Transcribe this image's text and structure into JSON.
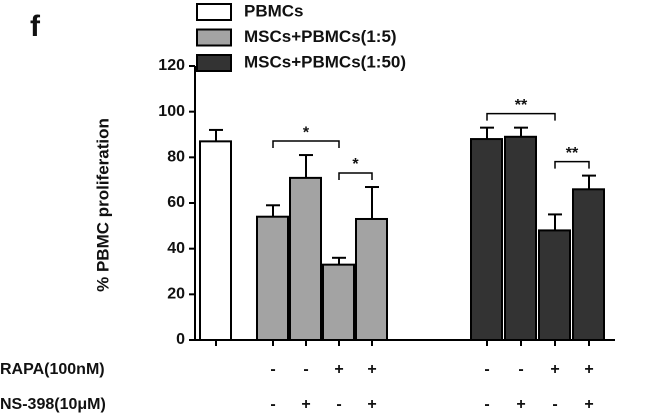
{
  "chart_data": {
    "type": "bar",
    "panel_label": "f",
    "ylabel": "% PBMC proliferation",
    "categories": [
      null,
      null,
      null,
      null,
      null,
      null,
      null,
      null,
      null
    ],
    "series": [
      {
        "name": "PBMCs",
        "color": "#ffffff",
        "values": [
          87,
          null,
          null,
          null,
          null,
          null,
          null,
          null,
          null
        ],
        "errors": [
          5,
          null,
          null,
          null,
          null,
          null,
          null,
          null,
          null
        ]
      },
      {
        "name": "MSCs+PBMCs(1:5)",
        "color": "#a3a3a3",
        "values": [
          null,
          54,
          71,
          33,
          53,
          null,
          null,
          null,
          null
        ],
        "errors": [
          null,
          5,
          10,
          3,
          14,
          null,
          null,
          null,
          null
        ]
      },
      {
        "name": "MSCs+PBMCs(1:50)",
        "color": "#333333",
        "values": [
          null,
          null,
          null,
          null,
          null,
          88,
          89,
          48,
          66
        ],
        "errors": [
          null,
          null,
          null,
          null,
          null,
          5,
          4,
          7,
          6
        ]
      }
    ],
    "ylim": [
      0,
      120
    ],
    "yticks": [
      0,
      20,
      40,
      60,
      80,
      100,
      120
    ],
    "significance": [
      "*",
      "*",
      "**",
      "**"
    ],
    "condition_rows": [
      {
        "label": "RAPA(100nM)",
        "values": [
          null,
          "-",
          "-",
          "+",
          "+",
          "-",
          "-",
          "+",
          "+"
        ]
      },
      {
        "label": "NS-398(10μM)",
        "values": [
          null,
          "-",
          "+",
          "-",
          "+",
          "-",
          "+",
          "-",
          "+"
        ]
      }
    ]
  }
}
